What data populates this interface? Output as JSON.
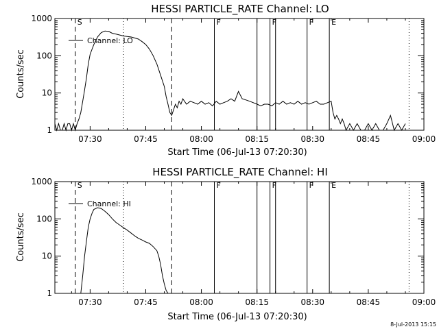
{
  "footer_timestamp": "8-Jul-2013 15:15",
  "chart_data": [
    {
      "type": "line",
      "title": "HESSI PARTICLE_RATE Channel: LO",
      "xlabel": "Start Time (06-Jul-13 07:20:30)",
      "ylabel": "Counts/sec",
      "yscale": "log",
      "ylim": [
        1,
        1000
      ],
      "xlim_minutes": [
        20.5,
        120
      ],
      "x_tick_labels": [
        "07:30",
        "07:45",
        "08:00",
        "08:15",
        "08:30",
        "08:45",
        "09:00"
      ],
      "x_tick_minutes": [
        30,
        45,
        60,
        75,
        90,
        105,
        120
      ],
      "y_tick_labels": [
        "1",
        "10",
        "100",
        "1000"
      ],
      "y_tick_values": [
        1,
        10,
        100,
        1000
      ],
      "legend": "Channel: LO",
      "markers": [
        {
          "label": "S",
          "minute": 26,
          "style": "dashed"
        },
        {
          "label": "",
          "minute": 39,
          "style": "dotted"
        },
        {
          "label": "",
          "minute": 52,
          "style": "dashed"
        },
        {
          "label": "F",
          "minute": 63.5,
          "style": "solid"
        },
        {
          "label": "",
          "minute": 75,
          "style": "solid"
        },
        {
          "label": "F",
          "minute": 78.5,
          "style": "solid"
        },
        {
          "label": "",
          "minute": 80,
          "style": "solid"
        },
        {
          "label": "F",
          "minute": 88.5,
          "style": "solid"
        },
        {
          "label": "E",
          "minute": 94.5,
          "style": "solid"
        },
        {
          "label": "",
          "minute": 116,
          "style": "dotted"
        }
      ],
      "series": [
        {
          "x": [
            20.5,
            21,
            21.5,
            22,
            22.5,
            23,
            23.5,
            24,
            24.5,
            25,
            25.5,
            26,
            26.5,
            27,
            27.5,
            28,
            28.5,
            29,
            29.5,
            30,
            31,
            32,
            33,
            34,
            35,
            36,
            37,
            38,
            39,
            40,
            41,
            42,
            43,
            44,
            45,
            46,
            47,
            48,
            49,
            50,
            50.5,
            51,
            51.5,
            52,
            52.5,
            53,
            53.5,
            54,
            54.5,
            55,
            56,
            57,
            58,
            59,
            60,
            61,
            62,
            63,
            64,
            65,
            66,
            67,
            68,
            69,
            70,
            71,
            72,
            73,
            74,
            75,
            76,
            77,
            78,
            79,
            80,
            81,
            82,
            83,
            84,
            85,
            86,
            87,
            88,
            89,
            90,
            91,
            92,
            93,
            94,
            95,
            95.5,
            96,
            96.5,
            97,
            97.5,
            98,
            98.5,
            99,
            100,
            101,
            102,
            103,
            104,
            105,
            106,
            107,
            108,
            109,
            110,
            111,
            112,
            113,
            114,
            115
          ],
          "y": [
            1.5,
            1,
            1.5,
            1,
            1,
            1.5,
            1,
            1.5,
            1.5,
            1,
            1.5,
            1,
            1.5,
            2,
            3,
            6,
            12,
            25,
            60,
            110,
            200,
            320,
            420,
            460,
            450,
            400,
            380,
            360,
            340,
            330,
            320,
            300,
            280,
            240,
            200,
            150,
            100,
            60,
            30,
            15,
            8,
            5,
            3,
            2.5,
            3.5,
            5,
            4,
            6,
            5,
            7,
            5,
            6,
            5.5,
            5,
            6,
            5,
            5.5,
            4.5,
            6,
            5,
            5.5,
            6,
            7,
            6,
            11,
            7,
            6.5,
            6,
            5.5,
            5,
            4.5,
            5,
            5,
            4.5,
            5.5,
            5,
            6,
            5,
            5.5,
            5,
            6,
            5,
            5.5,
            5,
            5.5,
            6,
            5,
            5,
            5.5,
            6,
            3,
            2,
            2.5,
            2,
            1.5,
            2,
            1.5,
            1,
            1.5,
            1,
            1.5,
            1,
            1,
            1.5,
            1,
            1.5,
            1,
            1,
            1.5,
            2.5,
            1,
            1.5,
            1,
            1.5
          ]
        }
      ]
    },
    {
      "type": "line",
      "title": "HESSI PARTICLE_RATE Channel: HI",
      "xlabel": "Start Time (06-Jul-13 07:20:30)",
      "ylabel": "Counts/sec",
      "yscale": "log",
      "ylim": [
        1,
        1000
      ],
      "xlim_minutes": [
        20.5,
        120
      ],
      "x_tick_labels": [
        "07:30",
        "07:45",
        "08:00",
        "08:15",
        "08:30",
        "08:45",
        "09:00"
      ],
      "x_tick_minutes": [
        30,
        45,
        60,
        75,
        90,
        105,
        120
      ],
      "y_tick_labels": [
        "1",
        "10",
        "100",
        "1000"
      ],
      "y_tick_values": [
        1,
        10,
        100,
        1000
      ],
      "legend": "Channel: HI",
      "markers": [
        {
          "label": "S",
          "minute": 26,
          "style": "dashed"
        },
        {
          "label": "",
          "minute": 39,
          "style": "dotted"
        },
        {
          "label": "",
          "minute": 52,
          "style": "dashed"
        },
        {
          "label": "F",
          "minute": 63.5,
          "style": "solid"
        },
        {
          "label": "",
          "minute": 75,
          "style": "solid"
        },
        {
          "label": "F",
          "minute": 78.5,
          "style": "solid"
        },
        {
          "label": "",
          "minute": 80,
          "style": "solid"
        },
        {
          "label": "F",
          "minute": 88.5,
          "style": "solid"
        },
        {
          "label": "E",
          "minute": 94.5,
          "style": "solid"
        },
        {
          "label": "",
          "minute": 116,
          "style": "dotted"
        }
      ],
      "series": [
        {
          "x": [
            27.5,
            28,
            28.5,
            29,
            29.5,
            30,
            30.5,
            31,
            32,
            33,
            34,
            35,
            36,
            37,
            38,
            39,
            40,
            41,
            42,
            43,
            44,
            45,
            46,
            47,
            48,
            48.5,
            49,
            49.5,
            50,
            50.5,
            51
          ],
          "y": [
            1,
            3,
            10,
            25,
            60,
            100,
            140,
            180,
            200,
            190,
            160,
            130,
            100,
            80,
            68,
            58,
            50,
            42,
            35,
            30,
            27,
            24,
            22,
            18,
            14,
            10,
            6,
            3,
            1.8,
            1.2,
            1
          ]
        }
      ]
    }
  ]
}
